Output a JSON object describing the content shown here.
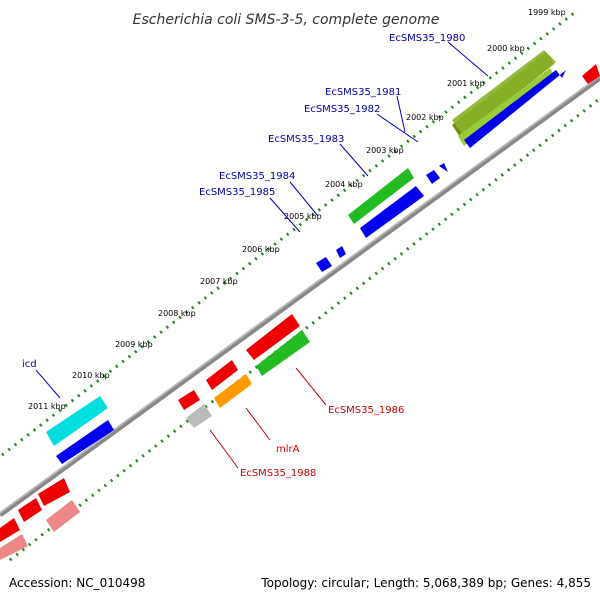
{
  "title": "Escherichia coli SMS-3-5, complete genome",
  "footer": {
    "accession": "Accession: NC_010498",
    "summary": "Topology: circular; Length: 5,068,389 bp; Genes: 4,855"
  },
  "kbp_labels": [
    "1999 kbp",
    "2000 kbp",
    "2001 kbp",
    "2002 kbp",
    "2003 kbp",
    "2004 kbp",
    "2005 kbp",
    "2006 kbp",
    "2007 kbp",
    "2008 kbp",
    "2009 kbp",
    "2010 kbp",
    "2011 kbp"
  ],
  "gene_labels": {
    "ecsms35_1980": "EcSMS35_1980",
    "ecsms35_1981": "EcSMS35_1981",
    "ecsms35_1982": "EcSMS35_1982",
    "ecsms35_1983": "EcSMS35_1983",
    "ecsms35_1984": "EcSMS35_1984",
    "ecsms35_1985": "EcSMS35_1985",
    "icd": "icd",
    "ecsms35_1986": "EcSMS35_1986",
    "mlra": "mlrA",
    "ecsms35_1988": "EcSMS35_1988"
  },
  "colors": {
    "backbone": "#777777",
    "ticks": "#1a8a1a",
    "label_forward": "#0000aa",
    "label_reverse": "#cc0000",
    "blue": "#0000ee",
    "green": "#22bb22",
    "olive": "#8ab22a",
    "red": "#ee0000",
    "pink": "#ee8888",
    "cyan": "#00dddd",
    "orange": "#ff9900",
    "gray": "#bbbbbb"
  }
}
